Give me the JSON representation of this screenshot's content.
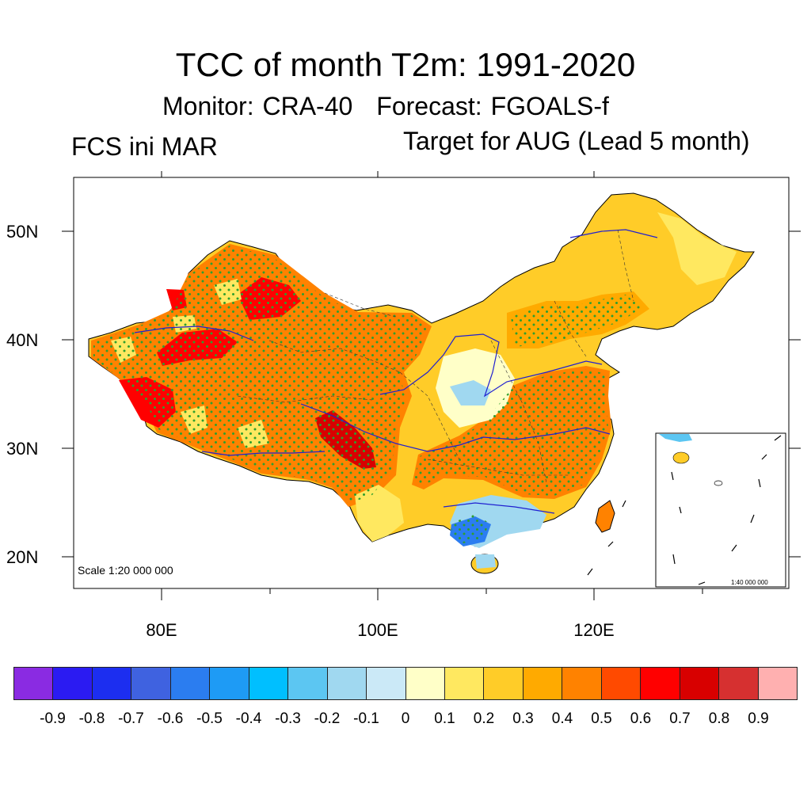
{
  "header": {
    "title": "TCC of month T2m: 1991-2020",
    "monitor": "Monitor: CRA-40",
    "forecast": "Forecast: FGOALS-f",
    "left_label": "FCS ini MAR",
    "right_label": "Target for AUG (Lead 5 month)"
  },
  "map": {
    "lat_labels": [
      "50N",
      "40N",
      "30N",
      "20N"
    ],
    "lon_labels": [
      "80E",
      "100E",
      "120E"
    ],
    "scale_main": "Scale 1:20 000 000",
    "scale_inset": "1:40 000 000"
  },
  "colorbar": {
    "colors": [
      "#8a2be2",
      "#2b1bf2",
      "#1c2ef0",
      "#3f62e0",
      "#2b7df0",
      "#1e9bf5",
      "#00bfff",
      "#5cc6f2",
      "#a0d8f0",
      "#cbe9f7",
      "#ffffc8",
      "#ffe860",
      "#ffcc28",
      "#ffaa00",
      "#ff8200",
      "#ff4a00",
      "#ff0000",
      "#d80000",
      "#d63030",
      "#ffb0b0"
    ],
    "labels": [
      "-0.9",
      "-0.8",
      "-0.7",
      "-0.6",
      "-0.5",
      "-0.4",
      "-0.3",
      "-0.2",
      "-0.1",
      "0",
      "0.1",
      "0.2",
      "0.3",
      "0.4",
      "0.5",
      "0.6",
      "0.7",
      "0.8",
      "0.9"
    ]
  }
}
